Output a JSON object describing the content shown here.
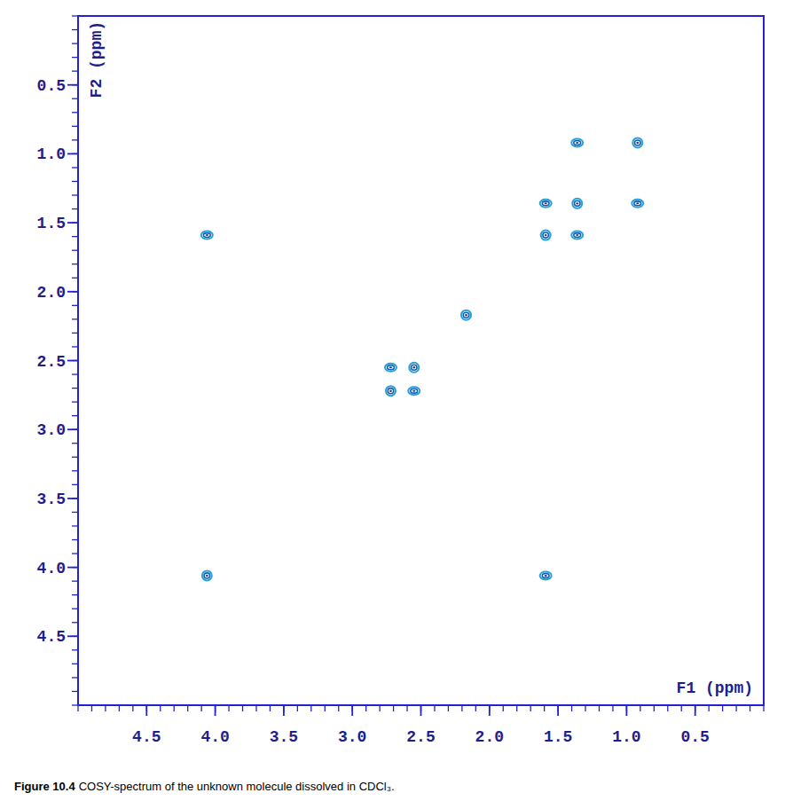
{
  "chart_data": {
    "type": "scatter",
    "marker": "contour",
    "color": "#2aa0d8",
    "xlabel": "F1 (ppm)",
    "ylabel": "F2 (ppm)",
    "caption": {
      "label": "Figure 10.4",
      "text": "COSY-spectrum of the unknown molecule dissolved in CDCl₃."
    },
    "xlim": [
      5.0,
      0.0
    ],
    "ylim": [
      0.0,
      5.0
    ],
    "xticks": [
      4.5,
      {
        "value": 4,
        "label": "4.0"
      },
      3.5,
      {
        "value": 3,
        "label": "3.0"
      },
      2.5,
      {
        "value": 2,
        "label": "2.0"
      },
      1.5,
      {
        "value": 1,
        "label": "1.0"
      },
      0.5
    ],
    "yticks": [
      0.5,
      {
        "value": 1,
        "label": "1.0"
      },
      1.5,
      {
        "value": 2,
        "label": "2.0"
      },
      2.5,
      {
        "value": 3,
        "label": "3.0"
      },
      3.5,
      {
        "value": 4,
        "label": "4.0"
      },
      4.5
    ],
    "x": [
      4.06,
      1.59,
      4.06,
      2.72,
      2.55,
      2.72,
      2.55,
      2.17,
      1.59,
      1.36,
      1.59,
      1.36,
      0.92,
      1.36,
      0.92
    ],
    "y": [
      4.06,
      4.06,
      1.59,
      2.72,
      2.72,
      2.55,
      2.55,
      2.17,
      1.59,
      1.59,
      1.36,
      1.36,
      1.36,
      0.92,
      0.92
    ]
  }
}
